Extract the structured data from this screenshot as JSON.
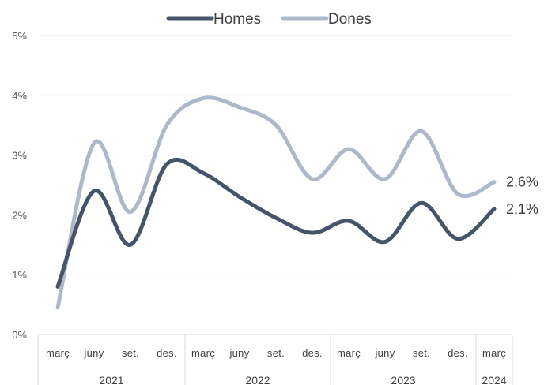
{
  "chart_data": {
    "type": "line",
    "title": "",
    "xlabel": "",
    "ylabel": "",
    "ylim": [
      0,
      5
    ],
    "y_ticks": [
      "0%",
      "1%",
      "2%",
      "3%",
      "4%",
      "5%"
    ],
    "categories": [
      "març",
      "juny",
      "set.",
      "des.",
      "març",
      "juny",
      "set.",
      "des.",
      "març",
      "juny",
      "set.",
      "des.",
      "març"
    ],
    "year_groups": [
      {
        "label": "2021",
        "count": 4
      },
      {
        "label": "2022",
        "count": 4
      },
      {
        "label": "2023",
        "count": 4
      },
      {
        "label": "2024",
        "count": 1
      }
    ],
    "legend_position": "top",
    "grid": true,
    "series": [
      {
        "name": "Homes",
        "color": "#44546a",
        "values": [
          0.8,
          2.4,
          1.5,
          2.85,
          2.7,
          2.3,
          1.95,
          1.7,
          1.9,
          1.55,
          2.2,
          1.6,
          2.1
        ],
        "end_label": "2,1%"
      },
      {
        "name": "Dones",
        "color": "#adb9ca",
        "values": [
          0.45,
          3.2,
          2.05,
          3.5,
          3.95,
          3.8,
          3.5,
          2.6,
          3.1,
          2.6,
          3.4,
          2.35,
          2.55
        ],
        "end_label": "2,6%"
      }
    ]
  }
}
